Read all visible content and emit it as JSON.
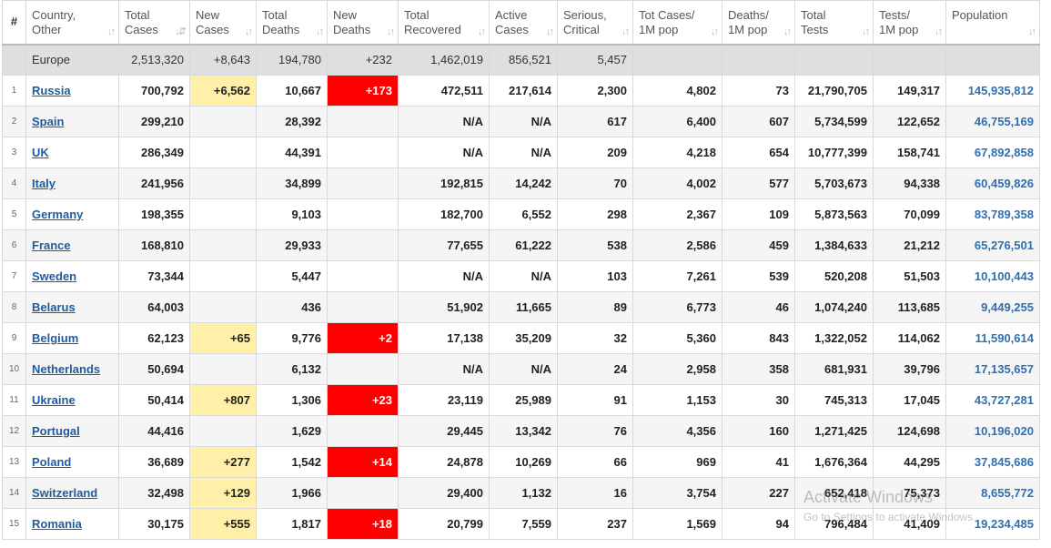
{
  "headers": [
    {
      "key": "rank",
      "line1": "#",
      "line2": ""
    },
    {
      "key": "country",
      "line1": "Country,",
      "line2": "Other"
    },
    {
      "key": "total_cases",
      "line1": "Total",
      "line2": "Cases"
    },
    {
      "key": "new_cases",
      "line1": "New",
      "line2": "Cases"
    },
    {
      "key": "total_deaths",
      "line1": "Total",
      "line2": "Deaths"
    },
    {
      "key": "new_deaths",
      "line1": "New",
      "line2": "Deaths"
    },
    {
      "key": "total_recovered",
      "line1": "Total",
      "line2": "Recovered"
    },
    {
      "key": "active_cases",
      "line1": "Active",
      "line2": "Cases"
    },
    {
      "key": "serious_critical",
      "line1": "Serious,",
      "line2": "Critical"
    },
    {
      "key": "tot_cases_per_1m",
      "line1": "Tot Cases/",
      "line2": "1M pop"
    },
    {
      "key": "deaths_per_1m",
      "line1": "Deaths/",
      "line2": "1M pop"
    },
    {
      "key": "total_tests",
      "line1": "Total",
      "line2": "Tests"
    },
    {
      "key": "tests_per_1m",
      "line1": "Tests/",
      "line2": "1M pop"
    },
    {
      "key": "population",
      "line1": "Population",
      "line2": ""
    }
  ],
  "sort_icon": "↓↑",
  "sort_icon_active": "↓⇵",
  "total_row": {
    "country": "Europe",
    "total_cases": "2,513,320",
    "new_cases": "+8,643",
    "total_deaths": "194,780",
    "new_deaths": "+232",
    "total_recovered": "1,462,019",
    "active_cases": "856,521",
    "serious_critical": "5,457",
    "tot_cases_per_1m": "",
    "deaths_per_1m": "",
    "total_tests": "",
    "tests_per_1m": "",
    "population": ""
  },
  "rows": [
    {
      "rank": "1",
      "country": "Russia",
      "total_cases": "700,792",
      "new_cases": "+6,562",
      "total_deaths": "10,667",
      "new_deaths": "+173",
      "total_recovered": "472,511",
      "active_cases": "217,614",
      "serious_critical": "2,300",
      "tot_cases_per_1m": "4,802",
      "deaths_per_1m": "73",
      "total_tests": "21,790,705",
      "tests_per_1m": "149,317",
      "population": "145,935,812"
    },
    {
      "rank": "2",
      "country": "Spain",
      "total_cases": "299,210",
      "new_cases": "",
      "total_deaths": "28,392",
      "new_deaths": "",
      "total_recovered": "N/A",
      "active_cases": "N/A",
      "serious_critical": "617",
      "tot_cases_per_1m": "6,400",
      "deaths_per_1m": "607",
      "total_tests": "5,734,599",
      "tests_per_1m": "122,652",
      "population": "46,755,169"
    },
    {
      "rank": "3",
      "country": "UK",
      "total_cases": "286,349",
      "new_cases": "",
      "total_deaths": "44,391",
      "new_deaths": "",
      "total_recovered": "N/A",
      "active_cases": "N/A",
      "serious_critical": "209",
      "tot_cases_per_1m": "4,218",
      "deaths_per_1m": "654",
      "total_tests": "10,777,399",
      "tests_per_1m": "158,741",
      "population": "67,892,858"
    },
    {
      "rank": "4",
      "country": "Italy",
      "total_cases": "241,956",
      "new_cases": "",
      "total_deaths": "34,899",
      "new_deaths": "",
      "total_recovered": "192,815",
      "active_cases": "14,242",
      "serious_critical": "70",
      "tot_cases_per_1m": "4,002",
      "deaths_per_1m": "577",
      "total_tests": "5,703,673",
      "tests_per_1m": "94,338",
      "population": "60,459,826"
    },
    {
      "rank": "5",
      "country": "Germany",
      "total_cases": "198,355",
      "new_cases": "",
      "total_deaths": "9,103",
      "new_deaths": "",
      "total_recovered": "182,700",
      "active_cases": "6,552",
      "serious_critical": "298",
      "tot_cases_per_1m": "2,367",
      "deaths_per_1m": "109",
      "total_tests": "5,873,563",
      "tests_per_1m": "70,099",
      "population": "83,789,358"
    },
    {
      "rank": "6",
      "country": "France",
      "total_cases": "168,810",
      "new_cases": "",
      "total_deaths": "29,933",
      "new_deaths": "",
      "total_recovered": "77,655",
      "active_cases": "61,222",
      "serious_critical": "538",
      "tot_cases_per_1m": "2,586",
      "deaths_per_1m": "459",
      "total_tests": "1,384,633",
      "tests_per_1m": "21,212",
      "population": "65,276,501"
    },
    {
      "rank": "7",
      "country": "Sweden",
      "total_cases": "73,344",
      "new_cases": "",
      "total_deaths": "5,447",
      "new_deaths": "",
      "total_recovered": "N/A",
      "active_cases": "N/A",
      "serious_critical": "103",
      "tot_cases_per_1m": "7,261",
      "deaths_per_1m": "539",
      "total_tests": "520,208",
      "tests_per_1m": "51,503",
      "population": "10,100,443"
    },
    {
      "rank": "8",
      "country": "Belarus",
      "total_cases": "64,003",
      "new_cases": "",
      "total_deaths": "436",
      "new_deaths": "",
      "total_recovered": "51,902",
      "active_cases": "11,665",
      "serious_critical": "89",
      "tot_cases_per_1m": "6,773",
      "deaths_per_1m": "46",
      "total_tests": "1,074,240",
      "tests_per_1m": "113,685",
      "population": "9,449,255"
    },
    {
      "rank": "9",
      "country": "Belgium",
      "total_cases": "62,123",
      "new_cases": "+65",
      "total_deaths": "9,776",
      "new_deaths": "+2",
      "total_recovered": "17,138",
      "active_cases": "35,209",
      "serious_critical": "32",
      "tot_cases_per_1m": "5,360",
      "deaths_per_1m": "843",
      "total_tests": "1,322,052",
      "tests_per_1m": "114,062",
      "population": "11,590,614"
    },
    {
      "rank": "10",
      "country": "Netherlands",
      "total_cases": "50,694",
      "new_cases": "",
      "total_deaths": "6,132",
      "new_deaths": "",
      "total_recovered": "N/A",
      "active_cases": "N/A",
      "serious_critical": "24",
      "tot_cases_per_1m": "2,958",
      "deaths_per_1m": "358",
      "total_tests": "681,931",
      "tests_per_1m": "39,796",
      "population": "17,135,657"
    },
    {
      "rank": "11",
      "country": "Ukraine",
      "total_cases": "50,414",
      "new_cases": "+807",
      "total_deaths": "1,306",
      "new_deaths": "+23",
      "total_recovered": "23,119",
      "active_cases": "25,989",
      "serious_critical": "91",
      "tot_cases_per_1m": "1,153",
      "deaths_per_1m": "30",
      "total_tests": "745,313",
      "tests_per_1m": "17,045",
      "population": "43,727,281"
    },
    {
      "rank": "12",
      "country": "Portugal",
      "total_cases": "44,416",
      "new_cases": "",
      "total_deaths": "1,629",
      "new_deaths": "",
      "total_recovered": "29,445",
      "active_cases": "13,342",
      "serious_critical": "76",
      "tot_cases_per_1m": "4,356",
      "deaths_per_1m": "160",
      "total_tests": "1,271,425",
      "tests_per_1m": "124,698",
      "population": "10,196,020"
    },
    {
      "rank": "13",
      "country": "Poland",
      "total_cases": "36,689",
      "new_cases": "+277",
      "total_deaths": "1,542",
      "new_deaths": "+14",
      "total_recovered": "24,878",
      "active_cases": "10,269",
      "serious_critical": "66",
      "tot_cases_per_1m": "969",
      "deaths_per_1m": "41",
      "total_tests": "1,676,364",
      "tests_per_1m": "44,295",
      "population": "37,845,686"
    },
    {
      "rank": "14",
      "country": "Switzerland",
      "total_cases": "32,498",
      "new_cases": "+129",
      "total_deaths": "1,966",
      "new_deaths": "",
      "total_recovered": "29,400",
      "active_cases": "1,132",
      "serious_critical": "16",
      "tot_cases_per_1m": "3,754",
      "deaths_per_1m": "227",
      "total_tests": "652,418",
      "tests_per_1m": "75,373",
      "population": "8,655,772"
    },
    {
      "rank": "15",
      "country": "Romania",
      "total_cases": "30,175",
      "new_cases": "+555",
      "total_deaths": "1,817",
      "new_deaths": "+18",
      "total_recovered": "20,799",
      "active_cases": "7,559",
      "serious_critical": "237",
      "tot_cases_per_1m": "1,569",
      "deaths_per_1m": "94",
      "total_tests": "796,484",
      "tests_per_1m": "41,409",
      "population": "19,234,485"
    }
  ],
  "colors": {
    "new_cases_bg": "#fff0a9",
    "new_deaths_bg": "#ff0000",
    "link": "#1f5b9f",
    "total_row_bg": "#dfdfdf"
  },
  "watermark": {
    "line1": "Activate Windows",
    "line2": "Go to Settings to activate Windows."
  }
}
